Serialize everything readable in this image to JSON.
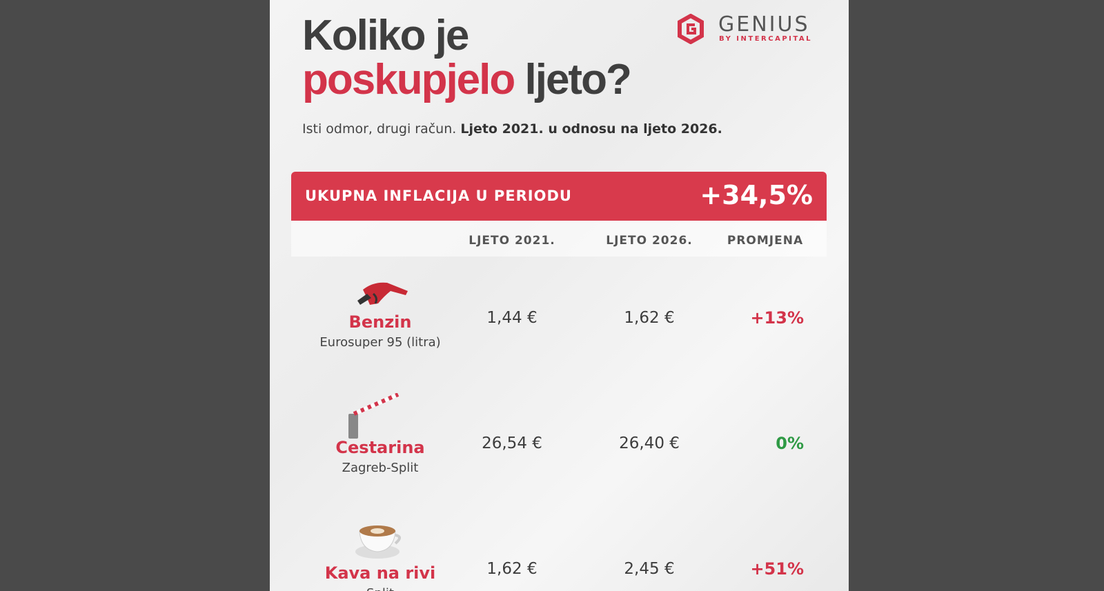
{
  "header": {
    "title_line1": "Koliko je",
    "title_highlight": "poskupjelo",
    "title_rest": "ljeto?",
    "subtitle_plain": "Isti odmor, drugi račun.",
    "subtitle_bold": "Ljeto 2021. u odnosu na ljeto 2026."
  },
  "logo": {
    "name": "GENIUS",
    "tagline": "BY INTERCAPITAL"
  },
  "banner": {
    "label": "UKUPNA INFLACIJA U PERIODU",
    "value": "+34,5%"
  },
  "table": {
    "columns": [
      "LJETO 2021.",
      "LJETO 2026.",
      "PROMJENA"
    ],
    "rows": [
      {
        "name": "Benzin",
        "detail": "Eurosuper 95 (litra)",
        "cells": [
          "1,44 €",
          "1,62 €",
          "+13%"
        ],
        "change_color": "#d3344a"
      },
      {
        "name": "Cestarina",
        "detail": "Zagreb-Split",
        "cells": [
          "26,54 €",
          "26,40 €",
          "0%"
        ],
        "change_color": "#2f9a45"
      },
      {
        "name": "Kava na rivi",
        "detail": "Split",
        "cells": [
          "1,62 €",
          "2,45 €",
          "+51%"
        ],
        "change_color": "#d3344a"
      }
    ]
  }
}
